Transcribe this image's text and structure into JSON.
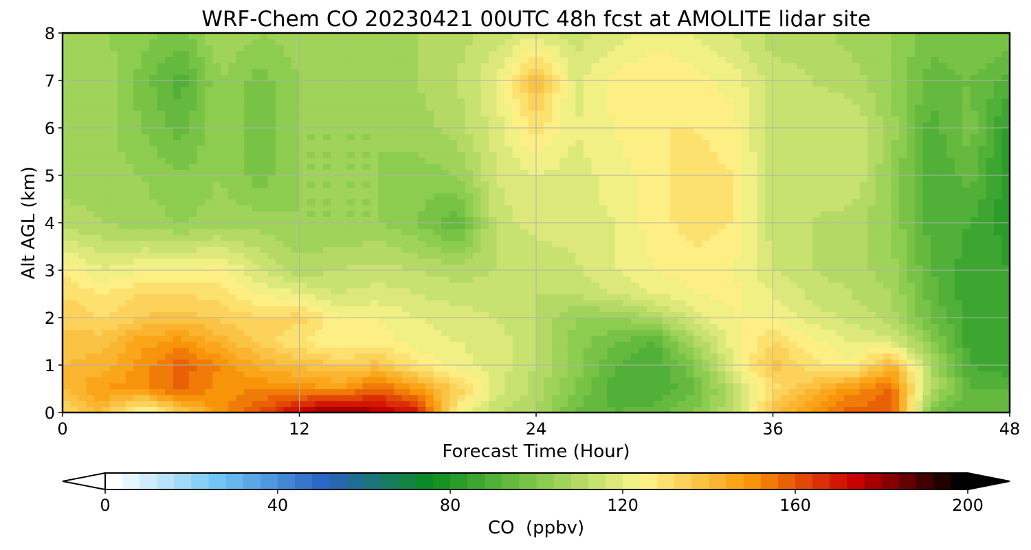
{
  "chart_data": {
    "type": "heatmap",
    "title": "WRF-Chem CO  20230421 00UTC 48h fcst at AMOLITE lidar site",
    "xlabel": "Forecast Time (Hour)",
    "ylabel": "Alt AGL (km)",
    "xlim": [
      0,
      48
    ],
    "ylim": [
      0,
      8
    ],
    "x_ticks": [
      "0",
      "12",
      "24",
      "36",
      "48"
    ],
    "y_ticks": [
      "0",
      "1",
      "2",
      "3",
      "4",
      "5",
      "6",
      "7",
      "8"
    ],
    "grid": true,
    "colorbar": {
      "label": "CO  (ppbv)",
      "range": [
        0,
        200
      ],
      "extend": "both",
      "ticks": [
        "0",
        "40",
        "80",
        "120",
        "160",
        "200"
      ],
      "colors": [
        "#ffffff",
        "#6fc5f5",
        "#2a62c4",
        "#0a8c1e",
        "#82c84a",
        "#fdf58c",
        "#fa9a0a",
        "#cc0000",
        "#000000"
      ]
    },
    "times": [
      0,
      2,
      4,
      6,
      8,
      10,
      12,
      14,
      16,
      18,
      20,
      22,
      24,
      26,
      28,
      30,
      32,
      34,
      36,
      38,
      40,
      42,
      44,
      46,
      48
    ],
    "altitudes": [
      0,
      0.5,
      1,
      1.5,
      2,
      2.5,
      3,
      4,
      5,
      6,
      7,
      8
    ],
    "values": [
      [
        130,
        140,
        120,
        135,
        150,
        160,
        175,
        185,
        178,
        170,
        125,
        112,
        108,
        95,
        92,
        94,
        100,
        112,
        138,
        148,
        158,
        158,
        98,
        92,
        92
      ],
      [
        140,
        148,
        150,
        158,
        150,
        152,
        150,
        148,
        158,
        148,
        135,
        118,
        110,
        100,
        90,
        88,
        95,
        112,
        130,
        140,
        150,
        158,
        110,
        92,
        92
      ],
      [
        140,
        142,
        150,
        158,
        152,
        142,
        140,
        135,
        138,
        128,
        122,
        118,
        112,
        102,
        92,
        88,
        100,
        120,
        138,
        130,
        125,
        142,
        110,
        88,
        85
      ],
      [
        138,
        138,
        146,
        150,
        142,
        135,
        128,
        125,
        126,
        122,
        120,
        118,
        112,
        102,
        96,
        92,
        108,
        122,
        132,
        125,
        120,
        118,
        102,
        86,
        85
      ],
      [
        135,
        132,
        136,
        138,
        135,
        132,
        134,
        125,
        124,
        120,
        118,
        116,
        112,
        104,
        104,
        108,
        118,
        124,
        124,
        118,
        115,
        110,
        96,
        86,
        84
      ],
      [
        132,
        128,
        132,
        132,
        130,
        124,
        120,
        116,
        118,
        116,
        114,
        114,
        112,
        112,
        116,
        120,
        124,
        125,
        120,
        115,
        112,
        108,
        94,
        85,
        84
      ],
      [
        128,
        120,
        124,
        124,
        126,
        116,
        110,
        112,
        114,
        112,
        110,
        112,
        112,
        115,
        120,
        124,
        126,
        124,
        116,
        112,
        110,
        106,
        92,
        86,
        84
      ],
      [
        110,
        108,
        106,
        104,
        106,
        106,
        104,
        104,
        104,
        100,
        92,
        114,
        118,
        118,
        120,
        126,
        130,
        128,
        114,
        112,
        110,
        104,
        90,
        88,
        82
      ],
      [
        106,
        106,
        104,
        100,
        104,
        98,
        104,
        104,
        104,
        102,
        104,
        116,
        120,
        118,
        122,
        126,
        130,
        128,
        114,
        114,
        116,
        104,
        88,
        94,
        80
      ],
      [
        104,
        106,
        100,
        94,
        104,
        96,
        104,
        104,
        104,
        106,
        110,
        118,
        130,
        120,
        124,
        128,
        128,
        126,
        112,
        114,
        116,
        106,
        90,
        98,
        82
      ],
      [
        104,
        108,
        98,
        90,
        104,
        98,
        104,
        106,
        106,
        108,
        112,
        120,
        140,
        118,
        126,
        128,
        126,
        122,
        114,
        112,
        110,
        104,
        94,
        96,
        90
      ],
      [
        104,
        104,
        102,
        98,
        108,
        104,
        106,
        106,
        106,
        108,
        110,
        114,
        118,
        114,
        118,
        122,
        120,
        116,
        110,
        110,
        106,
        104,
        98,
        100,
        100
      ]
    ]
  }
}
